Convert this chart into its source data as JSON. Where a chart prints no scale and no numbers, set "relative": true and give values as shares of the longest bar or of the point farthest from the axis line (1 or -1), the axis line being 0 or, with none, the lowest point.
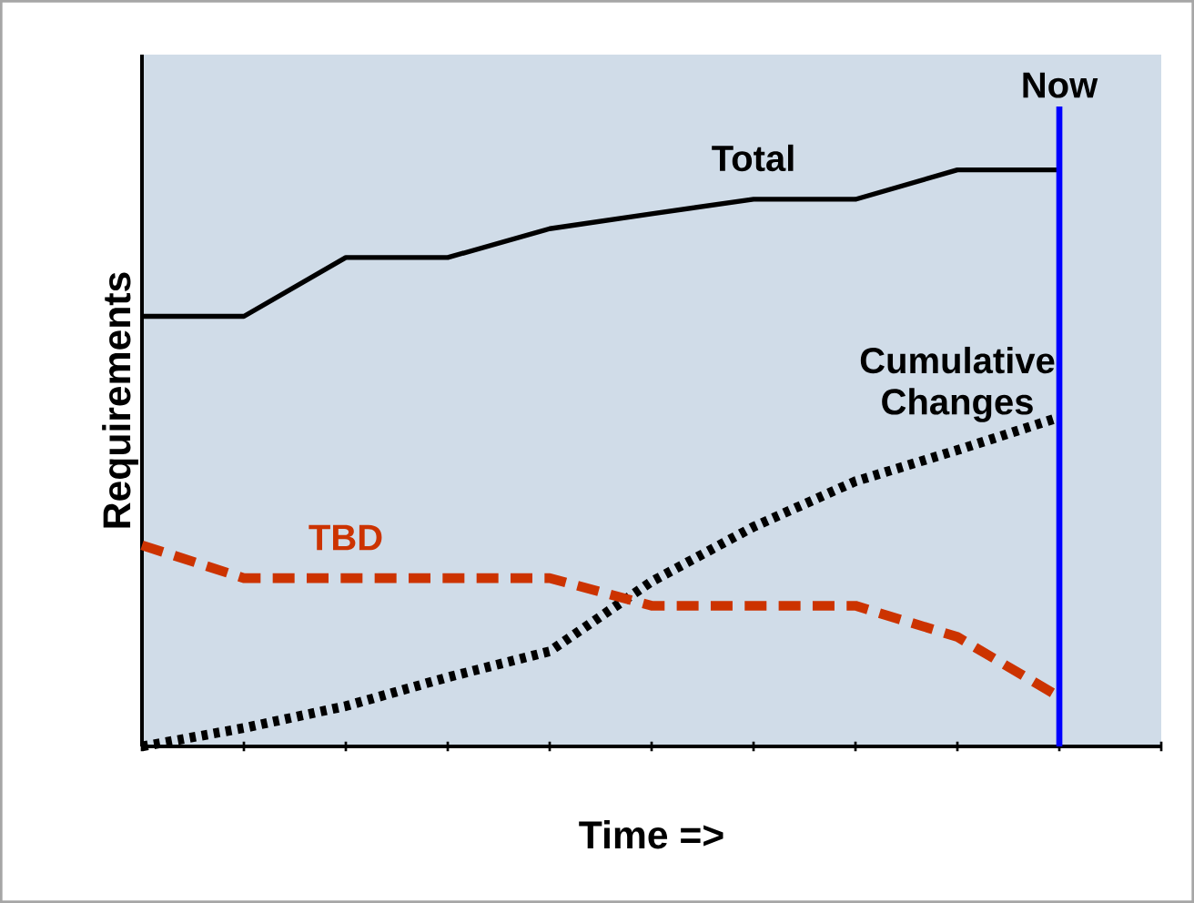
{
  "chart_data": {
    "type": "line",
    "relative": true,
    "xlabel": "Time =>",
    "ylabel": "Requirements",
    "categories": [
      null,
      null,
      null,
      null,
      null,
      null,
      null,
      null,
      null,
      null,
      null
    ],
    "series": [
      {
        "name": "Total",
        "color": "#000000",
        "line_style": "solid",
        "values": [
          0.746,
          0.746,
          0.848,
          0.848,
          0.898,
          0.924,
          0.949,
          0.949,
          1,
          1,
          null
        ]
      },
      {
        "name": "Cumulative Changes",
        "color": "#000000",
        "line_style": "dotted",
        "values": [
          0,
          0.032,
          0.07,
          0.12,
          0.165,
          0.286,
          0.381,
          0.46,
          0.514,
          0.571,
          null
        ]
      },
      {
        "name": "TBD",
        "color": "#cc3300",
        "line_style": "dashed",
        "values": [
          0.349,
          0.292,
          0.292,
          0.292,
          0.292,
          0.244,
          0.244,
          0.244,
          0.19,
          0.086,
          null
        ]
      }
    ],
    "annotations": [
      "Now"
    ]
  }
}
